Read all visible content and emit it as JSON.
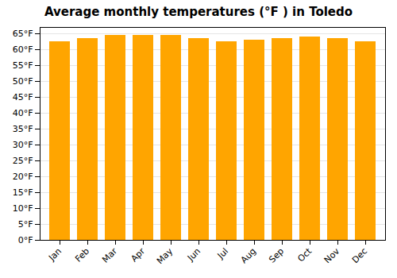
{
  "chart_data": {
    "type": "bar",
    "title": "Average monthly temperatures (°F ) in Toledo",
    "categories": [
      "Jan",
      "Feb",
      "Mar",
      "Apr",
      "May",
      "Jun",
      "Jul",
      "Aug",
      "Sep",
      "Oct",
      "Nov",
      "Dec"
    ],
    "values": [
      62.5,
      63.5,
      64.5,
      64.5,
      64.5,
      63.5,
      62.5,
      63.0,
      63.5,
      64.0,
      63.5,
      62.5
    ],
    "color": "#FFA500",
    "ylim": [
      0,
      67
    ],
    "yticks": [
      {
        "value": 0,
        "label": "0°F"
      },
      {
        "value": 5,
        "label": "5°F"
      },
      {
        "value": 10,
        "label": "10°F"
      },
      {
        "value": 15,
        "label": "15°F"
      },
      {
        "value": 20,
        "label": "20°F"
      },
      {
        "value": 25,
        "label": "25°F"
      },
      {
        "value": 30,
        "label": "30°F"
      },
      {
        "value": 35,
        "label": "35°F"
      },
      {
        "value": 40,
        "label": "40°F"
      },
      {
        "value": 45,
        "label": "45°F"
      },
      {
        "value": 50,
        "label": "50°F"
      },
      {
        "value": 55,
        "label": "55°F"
      },
      {
        "value": 60,
        "label": "60°F"
      },
      {
        "value": 65,
        "label": "65°F"
      }
    ],
    "grid": true
  }
}
